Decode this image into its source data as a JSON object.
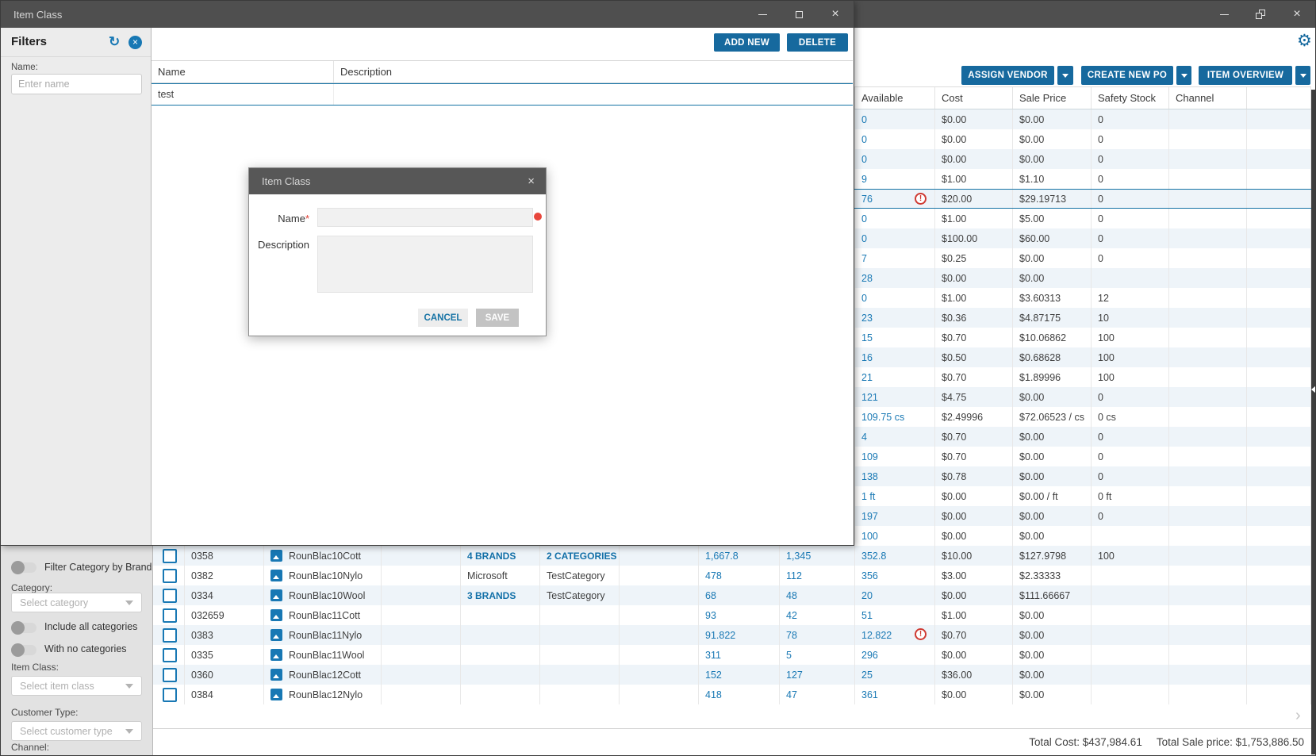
{
  "colors": {
    "accent_blue": "#16699e",
    "link_blue": "#1878b4",
    "brand_link_blue": "#1270a8",
    "warning_red": "#cf3a32",
    "titlebar_gray": "#4f4f4f",
    "row_alt_blue": "#eef4f9",
    "selected_border_blue": "#1673a5"
  },
  "icons": {
    "gear_icon": "⚙",
    "refresh_icon": "↻",
    "filter_close_icon": "×",
    "modal_close_icon": "×",
    "window_close_icon": "×",
    "chevron_right_icon": "›"
  },
  "fg_window": {
    "title": "Item Class",
    "filters": {
      "header": "Filters",
      "name_label": "Name:",
      "name_placeholder": "Enter name"
    },
    "toolbar": {
      "add_new_label": "ADD NEW",
      "delete_label": "DELETE"
    },
    "class_table": {
      "columns": [
        "Name",
        "Description"
      ],
      "rows": [
        {
          "name": "test",
          "description": ""
        }
      ]
    }
  },
  "modal": {
    "title": "Item Class",
    "name_label": "Name",
    "required_asterisk": "*",
    "name_value": "",
    "description_label": "Description",
    "description_value": "",
    "cancel_label": "CANCEL",
    "save_label": "SAVE"
  },
  "bg_window": {
    "toolbar": {
      "assign_vendor_label": "ASSIGN VENDOR",
      "create_new_po_label": "CREATE NEW PO",
      "item_overview_label": "ITEM OVERVIEW"
    },
    "inventory_table": {
      "columns": [
        "Available",
        "Cost",
        "Sale Price",
        "Safety Stock",
        "Channel"
      ],
      "rows": [
        {
          "av": "0",
          "cost": "$0.00",
          "sale": "$0.00",
          "ss": "0"
        },
        {
          "av": "0",
          "cost": "$0.00",
          "sale": "$0.00",
          "ss": "0"
        },
        {
          "av": "0",
          "cost": "$0.00",
          "sale": "$0.00",
          "ss": "0"
        },
        {
          "av": "9",
          "cost": "$1.00",
          "sale": "$1.10",
          "ss": "0"
        },
        {
          "av": "76",
          "warn": true,
          "selected": true,
          "cost": "$20.00",
          "sale": "$29.19713",
          "ss": "0"
        },
        {
          "av": "0",
          "cost": "$1.00",
          "sale": "$5.00",
          "ss": "0"
        },
        {
          "av": "0",
          "cost": "$100.00",
          "sale": "$60.00",
          "ss": "0"
        },
        {
          "av": "7",
          "cost": "$0.25",
          "sale": "$0.00",
          "ss": "0"
        },
        {
          "av": "28",
          "cost": "$0.00",
          "sale": "$0.00",
          "ss": ""
        },
        {
          "av": "0",
          "cost": "$1.00",
          "sale": "$3.60313",
          "ss": "12"
        },
        {
          "av": "23",
          "cost": "$0.36",
          "sale": "$4.87175",
          "ss": "10"
        },
        {
          "av": "15",
          "cost": "$0.70",
          "sale": "$10.06862",
          "ss": "100"
        },
        {
          "av": "16",
          "cost": "$0.50",
          "sale": "$0.68628",
          "ss": "100"
        },
        {
          "av": "21",
          "cost": "$0.70",
          "sale": "$1.89996",
          "ss": "100"
        },
        {
          "av": "121",
          "cost": "$4.75",
          "sale": "$0.00",
          "ss": "0"
        },
        {
          "av": "109.75 cs",
          "cost": "$2.49996",
          "sale": "$72.06523 / cs",
          "ss": "0 cs"
        },
        {
          "av": "4",
          "cost": "$0.70",
          "sale": "$0.00",
          "ss": "0"
        },
        {
          "av": "109",
          "cost": "$0.70",
          "sale": "$0.00",
          "ss": "0"
        },
        {
          "av": "138",
          "cost": "$0.78",
          "sale": "$0.00",
          "ss": "0"
        },
        {
          "av": "1 ft",
          "cost": "$0.00",
          "sale": "$0.00 / ft",
          "ss": "0 ft"
        },
        {
          "av": "197",
          "cost": "$0.00",
          "sale": "$0.00",
          "ss": "0"
        },
        {
          "av": "100",
          "cost": "$0.00",
          "sale": "$0.00",
          "ss": ""
        },
        {
          "num": "0358",
          "name": "RounBlac10Cott",
          "brand": "4 BRANDS",
          "brandLink": true,
          "cat": "2 CATEGORIES",
          "catLink": true,
          "qty1": "1,667.8",
          "qty2": "1,345",
          "av": "352.8",
          "cost": "$10.00",
          "sale": "$127.9798",
          "ss": "100"
        },
        {
          "num": "0382",
          "name": "RounBlac10Nylo",
          "brand": "Microsoft",
          "cat": "TestCategory",
          "qty1": "478",
          "qty2": "112",
          "av": "356",
          "cost": "$3.00",
          "sale": "$2.33333",
          "ss": ""
        },
        {
          "num": "0334",
          "name": "RounBlac10Wool",
          "brand": "3 BRANDS",
          "brandLink": true,
          "cat": "TestCategory",
          "qty1": "68",
          "qty2": "48",
          "av": "20",
          "cost": "$0.00",
          "sale": "$111.66667",
          "ss": ""
        },
        {
          "num": "032659",
          "name": "RounBlac11Cott",
          "qty1": "93",
          "qty2": "42",
          "av": "51",
          "cost": "$1.00",
          "sale": "$0.00",
          "ss": ""
        },
        {
          "num": "0383",
          "name": "RounBlac11Nylo",
          "qty1": "91.822",
          "qty2": "78",
          "av": "12.822",
          "warn": true,
          "cost": "$0.70",
          "sale": "$0.00",
          "ss": ""
        },
        {
          "num": "0335",
          "name": "RounBlac11Wool",
          "qty1": "311",
          "qty2": "5",
          "av": "296",
          "cost": "$0.00",
          "sale": "$0.00",
          "ss": ""
        },
        {
          "num": "0360",
          "name": "RounBlac12Cott",
          "qty1": "152",
          "qty2": "127",
          "av": "25",
          "cost": "$36.00",
          "sale": "$0.00",
          "ss": ""
        },
        {
          "num": "0384",
          "name": "RounBlac12Nylo",
          "qty1": "418",
          "qty2": "47",
          "av": "361",
          "cost": "$0.00",
          "sale": "$0.00",
          "ss": ""
        }
      ]
    },
    "sidebar_filters": {
      "brand_filter_toggle_label": "Filter Category by Brand",
      "category_label": "Category:",
      "category_placeholder": "Select category",
      "include_all_label": "Include all categories",
      "no_categories_label": "With no categories",
      "item_class_label": "Item Class:",
      "item_class_placeholder": "Select item class",
      "customer_type_label": "Customer Type:",
      "customer_type_placeholder": "Select customer type",
      "channel_label": "Channel:"
    },
    "footer": {
      "total_cost_label": "Total Cost:",
      "total_cost_value": "$437,984.61",
      "total_sale_label": "Total Sale price:",
      "total_sale_value": "$1,753,886.50"
    }
  }
}
